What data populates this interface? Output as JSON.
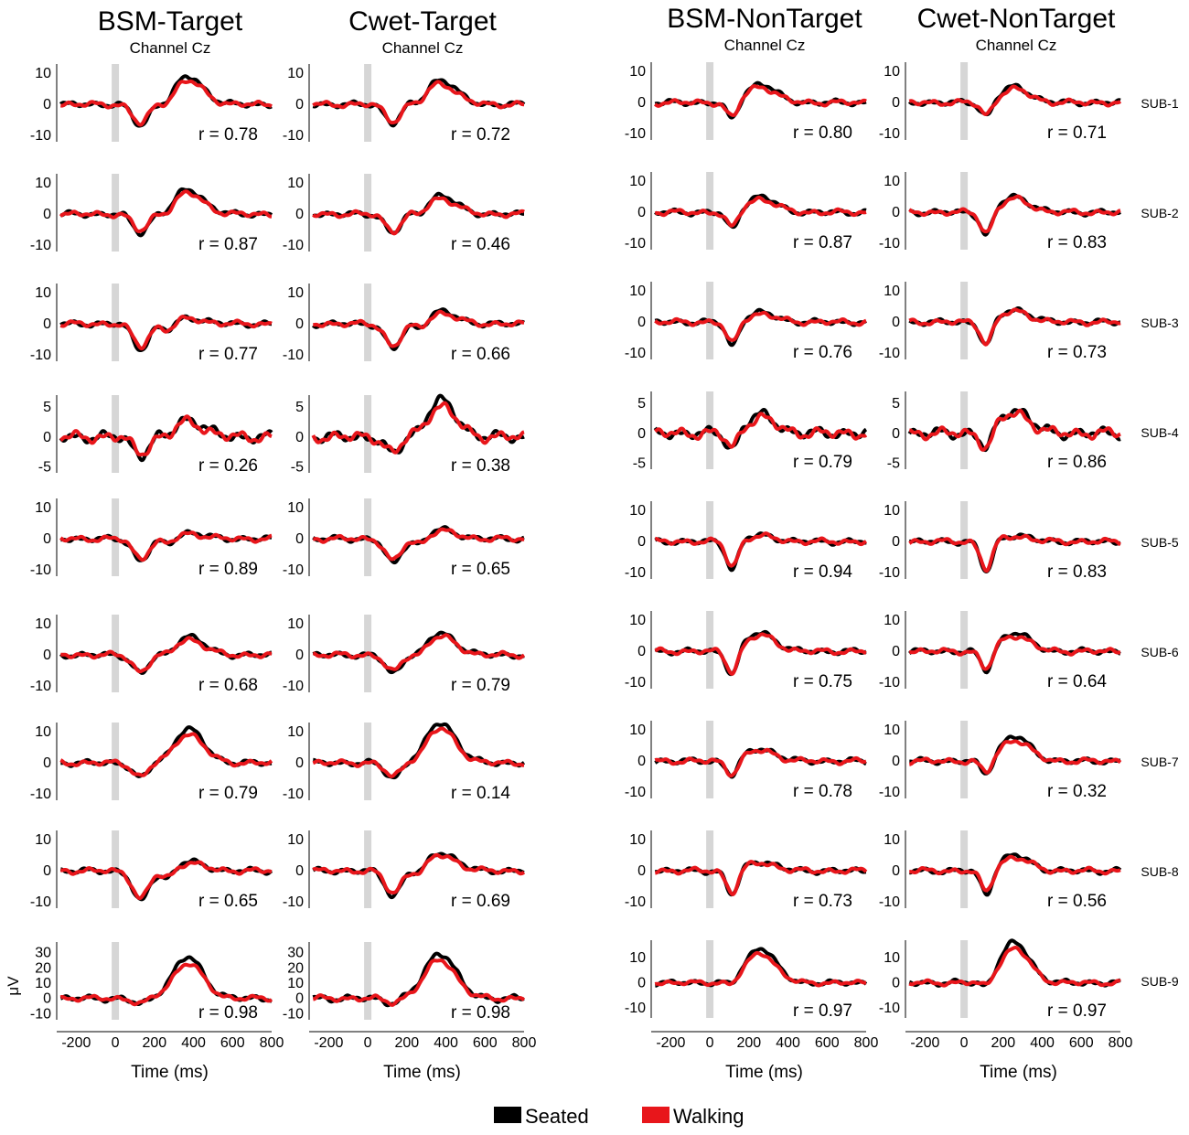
{
  "chart_data": {
    "type": "line",
    "colors": {
      "seated": "#000000",
      "walking": "#e8161b",
      "stimulus_bar": "#d6d6d6"
    },
    "legend": [
      {
        "name": "Seated",
        "color": "#000000"
      },
      {
        "name": "Walking",
        "color": "#e8161b"
      }
    ],
    "x_axis": {
      "label": "Time (ms)",
      "range": [
        -300,
        800
      ],
      "ticks": [
        -200,
        0,
        200,
        400,
        600,
        800
      ],
      "tick_labels": [
        "-200",
        "0",
        "200",
        "400",
        "600",
        "800"
      ]
    },
    "y_unit_label": "μV",
    "columns": [
      {
        "title": "BSM-Target",
        "subtitle": "Channel Cz",
        "shape": "target"
      },
      {
        "title": "Cwet-Target",
        "subtitle": "Channel Cz",
        "shape": "target"
      },
      {
        "title": "BSM-NonTarget",
        "subtitle": "Channel Cz",
        "shape": "nontarget"
      },
      {
        "title": "Cwet-NonTarget",
        "subtitle": "Channel Cz",
        "shape": "nontarget"
      }
    ],
    "subjects": [
      {
        "label": "SUB-1",
        "ylim": [
          -12,
          13
        ],
        "yticks": [
          {
            "v": 10,
            "t": "10"
          },
          {
            "v": 0,
            "t": "0"
          },
          {
            "v": -10,
            "t": "-10"
          }
        ],
        "r": [
          "r = 0.78",
          "r = 0.72",
          "r = 0.80",
          "r = 0.71"
        ],
        "amp": [
          [
            9,
            -7
          ],
          [
            8,
            -6
          ],
          [
            6,
            -6
          ],
          [
            5,
            -5
          ]
        ]
      },
      {
        "label": "SUB-2",
        "ylim": [
          -12,
          13
        ],
        "yticks": [
          {
            "v": 10,
            "t": "10"
          },
          {
            "v": 0,
            "t": "0"
          },
          {
            "v": -10,
            "t": "-10"
          }
        ],
        "r": [
          "r = 0.87",
          "r = 0.46",
          "r = 0.87",
          "r = 0.83"
        ],
        "amp": [
          [
            8,
            -6
          ],
          [
            6,
            -6
          ],
          [
            5,
            -6
          ],
          [
            5,
            -8
          ]
        ]
      },
      {
        "label": "SUB-3",
        "ylim": [
          -12,
          13
        ],
        "yticks": [
          {
            "v": 10,
            "t": "10"
          },
          {
            "v": 0,
            "t": "0"
          },
          {
            "v": -10,
            "t": "-10"
          }
        ],
        "r": [
          "r = 0.77",
          "r = 0.66",
          "r = 0.76",
          "r = 0.73"
        ],
        "amp": [
          [
            2,
            -8
          ],
          [
            4,
            -8
          ],
          [
            3,
            -8
          ],
          [
            4,
            -8
          ]
        ]
      },
      {
        "label": "SUB-4",
        "ylim": [
          -6,
          7
        ],
        "yticks": [
          {
            "v": 5,
            "t": "5"
          },
          {
            "v": 0,
            "t": "0"
          },
          {
            "v": -5,
            "t": "-5"
          }
        ],
        "r": [
          "r = 0.26",
          "r = 0.38",
          "r = 0.79",
          "r = 0.86"
        ],
        "amp": [
          [
            3,
            -3
          ],
          [
            6,
            -3
          ],
          [
            3,
            -3
          ],
          [
            4,
            -3
          ]
        ]
      },
      {
        "label": "SUB-5",
        "ylim": [
          -12,
          13
        ],
        "yticks": [
          {
            "v": 10,
            "t": "10"
          },
          {
            "v": 0,
            "t": "0"
          },
          {
            "v": -10,
            "t": "-10"
          }
        ],
        "r": [
          "r = 0.89",
          "r = 0.65",
          "r = 0.94",
          "r = 0.83"
        ],
        "amp": [
          [
            2,
            -7
          ],
          [
            3,
            -8
          ],
          [
            2,
            -9
          ],
          [
            2,
            -10
          ]
        ]
      },
      {
        "label": "SUB-6",
        "ylim": [
          -12,
          13
        ],
        "yticks": [
          {
            "v": 10,
            "t": "10"
          },
          {
            "v": 0,
            "t": "0"
          },
          {
            "v": -10,
            "t": "-10"
          }
        ],
        "r": [
          "r = 0.68",
          "r = 0.79",
          "r = 0.75",
          "r = 0.64"
        ],
        "amp": [
          [
            6,
            -6
          ],
          [
            7,
            -6
          ],
          [
            6,
            -8
          ],
          [
            6,
            -7
          ]
        ]
      },
      {
        "label": "SUB-7",
        "ylim": [
          -12,
          13
        ],
        "yticks": [
          {
            "v": 10,
            "t": "10"
          },
          {
            "v": 0,
            "t": "0"
          },
          {
            "v": -10,
            "t": "-10"
          }
        ],
        "r": [
          "r = 0.79",
          "r = 0.14",
          "r = 0.78",
          "r = 0.32"
        ],
        "amp": [
          [
            11,
            -5
          ],
          [
            13,
            -5
          ],
          [
            4,
            -5
          ],
          [
            8,
            -5
          ]
        ]
      },
      {
        "label": "SUB-8",
        "ylim": [
          -12,
          13
        ],
        "yticks": [
          {
            "v": 10,
            "t": "10"
          },
          {
            "v": 0,
            "t": "0"
          },
          {
            "v": -10,
            "t": "-10"
          }
        ],
        "r": [
          "r = 0.65",
          "r = 0.69",
          "r = 0.73",
          "r = 0.56"
        ],
        "amp": [
          [
            3,
            -10
          ],
          [
            6,
            -8
          ],
          [
            3,
            -8
          ],
          [
            5,
            -8
          ]
        ]
      },
      {
        "label": "SUB-9",
        "ylim": [
          -14,
          37
        ],
        "yticks": [
          {
            "v": 30,
            "t": "30"
          },
          {
            "v": 20,
            "t": "20"
          },
          {
            "v": 10,
            "t": "10"
          },
          {
            "v": 0,
            "t": "0"
          },
          {
            "v": -10,
            "t": "-10"
          }
        ],
        "ylim_nt": [
          -14,
          17
        ],
        "yticks_nt": [
          {
            "v": 10,
            "t": "10"
          },
          {
            "v": 0,
            "t": "0"
          },
          {
            "v": -10,
            "t": "-10"
          }
        ],
        "r": [
          "r = 0.98",
          "r = 0.98",
          "r = 0.97",
          "r = 0.97"
        ],
        "amp": [
          [
            27,
            -4
          ],
          [
            30,
            -3
          ],
          [
            14,
            -2
          ],
          [
            16,
            -3
          ]
        ]
      }
    ]
  }
}
